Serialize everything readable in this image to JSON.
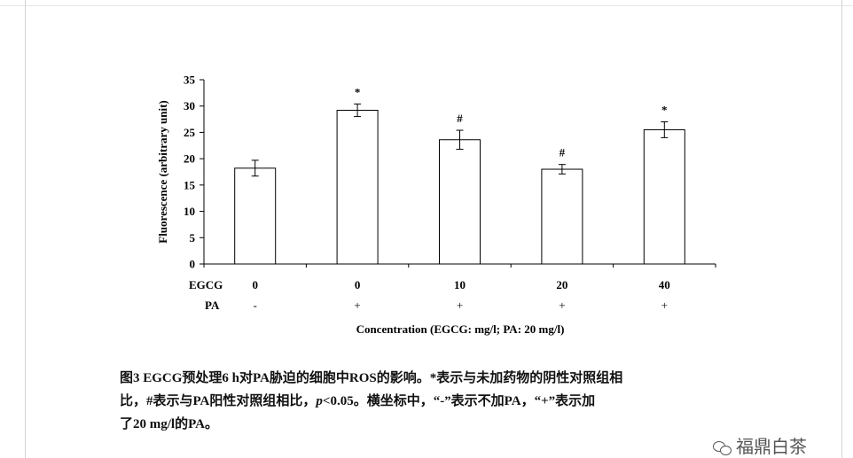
{
  "chart_data": {
    "type": "bar",
    "ylabel": "Fluorescence (arbitrary unit)",
    "xlabel": "Concentration (EGCG: mg/l; PA: 20 mg/l)",
    "ylim": [
      0,
      35
    ],
    "yticks": [
      0,
      5,
      10,
      15,
      20,
      25,
      30,
      35
    ],
    "row_labels": [
      "EGCG",
      "PA"
    ],
    "categories": [
      {
        "egcg": "0",
        "pa": "-"
      },
      {
        "egcg": "0",
        "pa": "+"
      },
      {
        "egcg": "10",
        "pa": "+"
      },
      {
        "egcg": "20",
        "pa": "+"
      },
      {
        "egcg": "40",
        "pa": "+"
      }
    ],
    "values": [
      18.2,
      29.2,
      23.6,
      18.0,
      25.5
    ],
    "errors": [
      1.5,
      1.2,
      1.8,
      0.9,
      1.5
    ],
    "significance": [
      "",
      "*",
      "#",
      "#",
      "*"
    ],
    "grid": false,
    "bar_fill": "#ffffff",
    "bar_stroke": "#000000"
  },
  "caption": {
    "line1": "图3 EGCG预处理6 h对PA胁迫的细胞中ROS的影响。*表示与未加药物的阴性对照组相",
    "line2_a": "比，#表示与PA阳性对照组相比，",
    "line2_p": "p",
    "line2_b": "<0.05。横坐标中，“-”表示不加PA，“+”表示加",
    "line3": "了20 mg/l的PA。"
  },
  "watermark": {
    "text": "福鼎白茶",
    "icon": "wechat-icon"
  }
}
